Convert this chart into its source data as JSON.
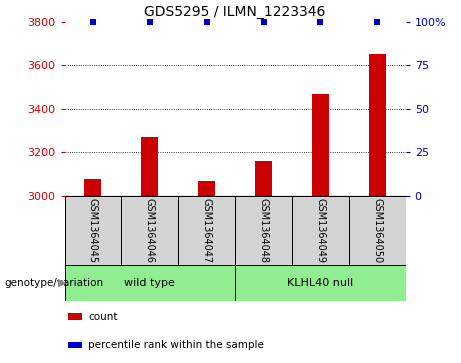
{
  "title": "GDS5295 / ILMN_1223346",
  "samples": [
    "GSM1364045",
    "GSM1364046",
    "GSM1364047",
    "GSM1364048",
    "GSM1364049",
    "GSM1364050"
  ],
  "counts": [
    3080,
    3270,
    3070,
    3160,
    3470,
    3650
  ],
  "percentile_ranks": [
    100,
    100,
    100,
    100,
    100,
    100
  ],
  "ylim_left": [
    3000,
    3800
  ],
  "ylim_right": [
    0,
    100
  ],
  "yticks_left": [
    3000,
    3200,
    3400,
    3600,
    3800
  ],
  "yticks_right": [
    0,
    25,
    50,
    75,
    100
  ],
  "ytick_labels_right": [
    "0",
    "25",
    "50",
    "75",
    "100%"
  ],
  "bar_color": "#cc0000",
  "dot_color": "#0000cc",
  "groups": [
    {
      "label": "wild type",
      "indices": [
        0,
        1,
        2
      ],
      "color": "#90ee90"
    },
    {
      "label": "KLHL40 null",
      "indices": [
        3,
        4,
        5
      ],
      "color": "#90ee90"
    }
  ],
  "group_label_prefix": "genotype/variation",
  "legend_items": [
    {
      "color": "#cc0000",
      "label": "count"
    },
    {
      "color": "#0000cc",
      "label": "percentile rank within the sample"
    }
  ],
  "sample_box_color": "#d3d3d3",
  "title_fontsize": 10,
  "tick_fontsize": 8,
  "label_fontsize": 8
}
